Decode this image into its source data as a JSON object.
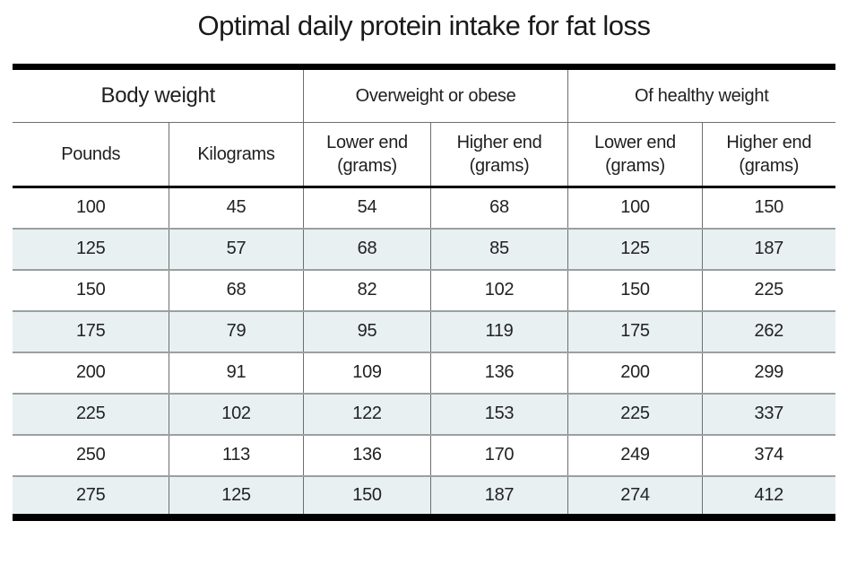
{
  "title": "Optimal daily protein intake for fat loss",
  "theme": {
    "stripe_color": "#e8f0f2",
    "heavy_border_color": "#000000",
    "row_line_color": "#9aa0a0",
    "column_line_color": "#6e6e6e",
    "text_color": "#222222",
    "background_color": "#ffffff"
  },
  "chart_data": {
    "type": "table",
    "title": "Optimal daily protein intake for fat loss",
    "column_groups": [
      "Body weight",
      "Overweight or obese",
      "Of healthy weight"
    ],
    "columns": [
      "Pounds",
      "Kilograms",
      "Lower end (grams)",
      "Higher end (grams)",
      "Lower end (grams)",
      "Higher end (grams)"
    ],
    "rows": [
      [
        100,
        45,
        54,
        68,
        100,
        150
      ],
      [
        125,
        57,
        68,
        85,
        125,
        187
      ],
      [
        150,
        68,
        82,
        102,
        150,
        225
      ],
      [
        175,
        79,
        95,
        119,
        175,
        262
      ],
      [
        200,
        91,
        109,
        136,
        200,
        299
      ],
      [
        225,
        102,
        122,
        153,
        225,
        337
      ],
      [
        250,
        113,
        136,
        170,
        249,
        374
      ],
      [
        275,
        125,
        150,
        187,
        274,
        412
      ]
    ],
    "layout": {
      "zebra_striped_rows": "even",
      "grid": "on",
      "units": "grams of protein per day"
    }
  }
}
